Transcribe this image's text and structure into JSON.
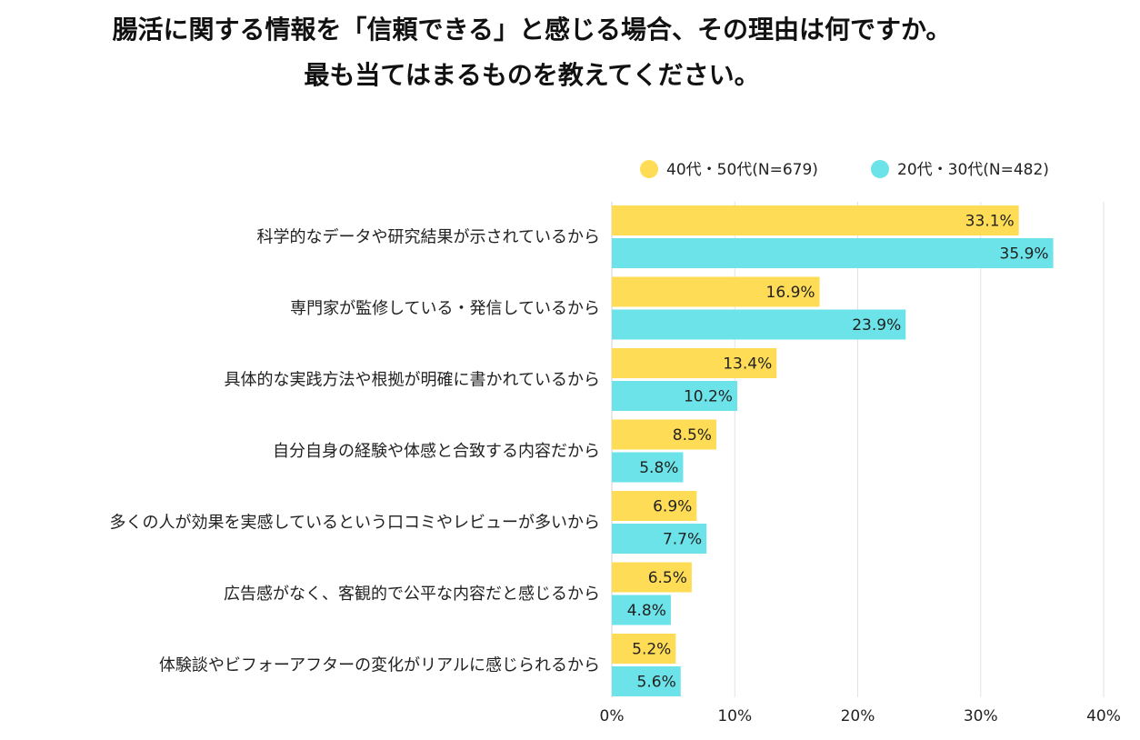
{
  "chart_data": {
    "type": "bar",
    "orientation": "horizontal",
    "title_lines": [
      "腸活に関する情報を「信頼できる」と感じる場合、その理由は何ですか。",
      "最も当てはまるものを教えてください。"
    ],
    "categories": [
      "科学的なデータや研究結果が示されているから",
      "専門家が監修している・発信しているから",
      "具体的な実践方法や根拠が明確に書かれているから",
      "自分自身の経験や体感と合致する内容だから",
      "多くの人が効果を実感しているという口コミやレビューが多いから",
      "広告感がなく、客観的で公平な内容だと感じるから",
      "体験談やビフォーアフターの変化がリアルに感じられるから"
    ],
    "series": [
      {
        "name": "40代・50代(N=679)",
        "color": "#FFDC55",
        "values": [
          33.1,
          16.9,
          13.4,
          8.5,
          6.9,
          6.5,
          5.2
        ],
        "labels": [
          "33.1%",
          "16.9%",
          "13.4%",
          "8.5%",
          "6.9%",
          "6.5%",
          "5.2%"
        ]
      },
      {
        "name": "20代・30代(N=482)",
        "color": "#6BE3E8",
        "values": [
          35.9,
          23.9,
          10.2,
          5.8,
          7.7,
          4.8,
          5.6
        ],
        "labels": [
          "35.9%",
          "23.9%",
          "10.2%",
          "5.8%",
          "7.7%",
          "4.8%",
          "5.6%"
        ]
      }
    ],
    "xlim": [
      0,
      40
    ],
    "xticks": [
      0,
      10,
      20,
      30,
      40
    ],
    "xtick_labels": [
      "0%",
      "10%",
      "20%",
      "30%",
      "40%"
    ],
    "grid": true,
    "legend_position": "top-right"
  }
}
